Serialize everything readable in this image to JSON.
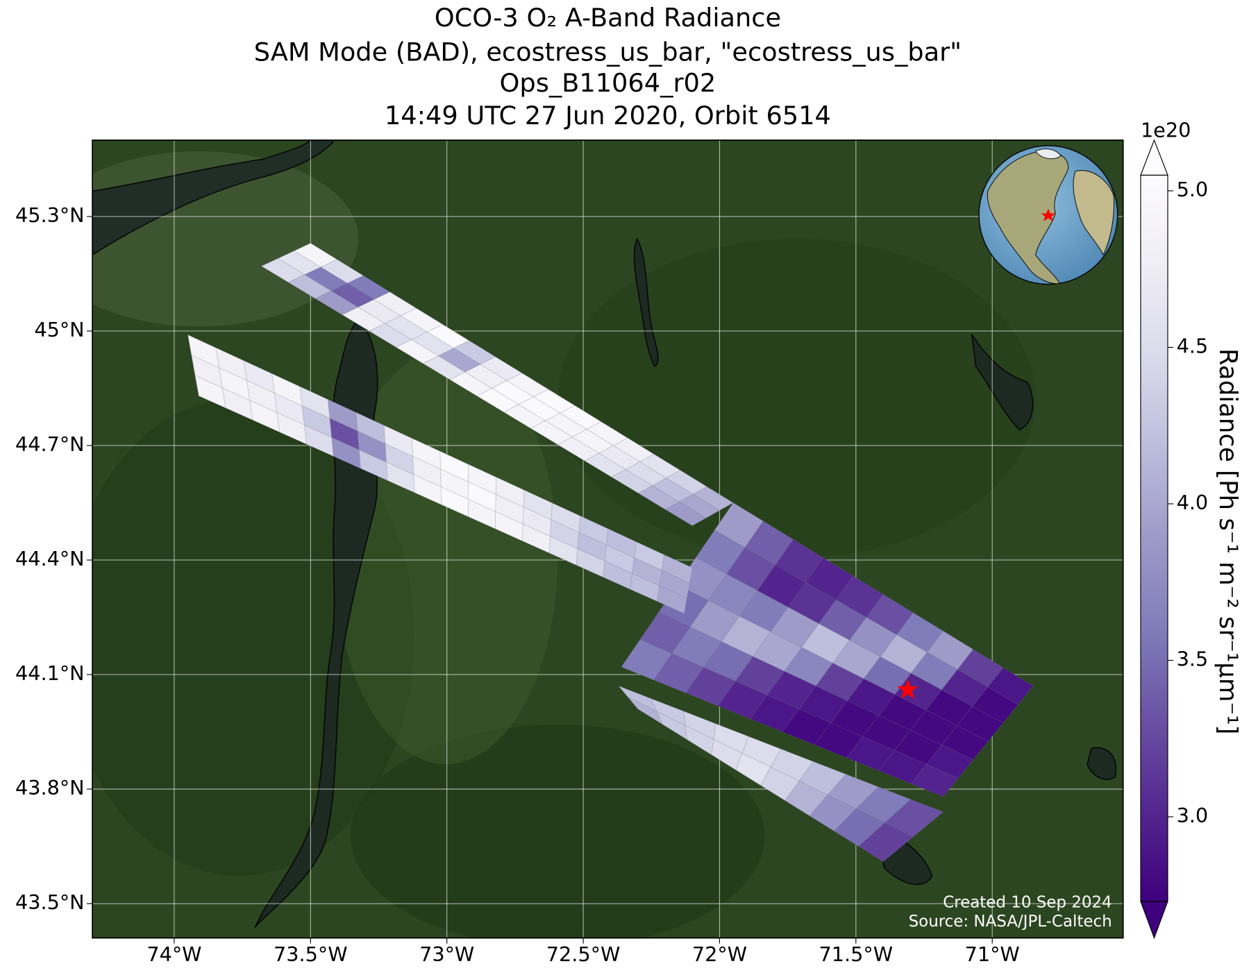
{
  "chart_data": {
    "type": "swath-map",
    "title": [
      "OCO-3 O₂ A-Band Radiance",
      "SAM Mode (BAD), ecostress_us_bar, \"ecostress_us_bar\"",
      "Ops_B11064_r02",
      "14:49 UTC 27 Jun 2020, Orbit 6514"
    ],
    "xlim": [
      -74.3,
      -70.52
    ],
    "ylim": [
      43.41,
      45.5
    ],
    "xticks": [
      {
        "value": -74,
        "label": "74°W"
      },
      {
        "value": -73.5,
        "label": "73.5°W"
      },
      {
        "value": -73,
        "label": "73°W"
      },
      {
        "value": -72.5,
        "label": "72.5°W"
      },
      {
        "value": -72,
        "label": "72°W"
      },
      {
        "value": -71.5,
        "label": "71.5°W"
      },
      {
        "value": -71,
        "label": "71°W"
      }
    ],
    "yticks": [
      {
        "value": 43.5,
        "label": "43.5°N"
      },
      {
        "value": 43.8,
        "label": "43.8°N"
      },
      {
        "value": 44.1,
        "label": "44.1°N"
      },
      {
        "value": 44.4,
        "label": "44.4°N"
      },
      {
        "value": 44.7,
        "label": "44.7°N"
      },
      {
        "value": 45,
        "label": "45°N"
      },
      {
        "value": 45.3,
        "label": "45.3°N"
      }
    ],
    "grid": true,
    "colorbar": {
      "label": "Radiance [Ph s⁻¹ m⁻² sr⁻¹μm⁻¹]",
      "offset_label": "1e20",
      "clim": [
        2.73,
        5.05
      ],
      "ticks": [
        {
          "value": 3,
          "label": "3.0"
        },
        {
          "value": 3.5,
          "label": "3.5"
        },
        {
          "value": 4,
          "label": "4.0"
        },
        {
          "value": 4.5,
          "label": "4.5"
        },
        {
          "value": 5,
          "label": "5.0"
        }
      ],
      "colormap": [
        "#3f007d",
        "#54278f",
        "#6a51a3",
        "#807dba",
        "#9e9ac8",
        "#bcbddc",
        "#dadaeb",
        "#efedf5",
        "#fcfbfd"
      ]
    },
    "target": {
      "lon": -71.31,
      "lat": 44.06,
      "color": "#ff0000"
    },
    "swaths": [
      {
        "corners": [
          [
            -73.5,
            45.23
          ],
          [
            -71.95,
            44.55
          ],
          [
            -72.1,
            44.49
          ],
          [
            -73.68,
            45.17
          ]
        ],
        "values": [
          [
            4.9,
            4.5,
            3.6,
            4.8,
            4.9,
            5.0,
            4.3,
            4.7,
            4.9,
            5.0,
            5.0,
            4.9,
            4.8,
            4.6,
            4.4,
            4.1
          ],
          [
            4.6,
            3.6,
            3.4,
            4.7,
            4.6,
            4.6,
            4.0,
            4.8,
            5.0,
            5.0,
            4.9,
            4.9,
            4.7,
            4.5,
            4.2,
            4.0
          ],
          [
            4.5,
            4.2,
            3.9,
            4.8,
            4.5,
            4.9,
            4.6,
            4.9,
            5.0,
            4.9,
            4.9,
            4.8,
            4.6,
            4.4,
            4.1,
            3.9
          ]
        ]
      },
      {
        "corners": [
          [
            -71.95,
            44.55
          ],
          [
            -70.85,
            44.07
          ],
          [
            -71.18,
            43.78
          ],
          [
            -72.36,
            44.12
          ]
        ],
        "values": [
          [
            3.9,
            3.4,
            3.1,
            3.0,
            3.1,
            3.3,
            3.6,
            3.9,
            3.2,
            2.9
          ],
          [
            3.6,
            3.3,
            3.0,
            3.1,
            3.4,
            3.8,
            4.1,
            3.6,
            3.0,
            2.8
          ],
          [
            3.8,
            3.7,
            3.6,
            3.9,
            4.2,
            4.0,
            3.5,
            3.0,
            2.8,
            2.8
          ],
          [
            3.5,
            3.9,
            4.1,
            4.0,
            3.7,
            3.2,
            2.9,
            2.8,
            2.8,
            2.8
          ],
          [
            3.4,
            3.6,
            3.5,
            3.2,
            3.0,
            2.9,
            2.8,
            2.8,
            2.8,
            2.9
          ],
          [
            3.6,
            3.4,
            3.2,
            3.0,
            2.9,
            2.8,
            2.8,
            2.9,
            2.9,
            3.0
          ]
        ]
      },
      {
        "corners": [
          [
            -73.95,
            44.99
          ],
          [
            -72.1,
            44.38
          ],
          [
            -72.13,
            44.26
          ],
          [
            -73.91,
            44.83
          ]
        ],
        "values": [
          [
            4.9,
            4.8,
            4.7,
            4.9,
            4.6,
            3.9,
            4.2,
            4.7,
            4.9,
            5.0,
            4.9,
            4.8,
            4.6,
            4.5,
            4.3,
            4.2,
            4.3,
            4.1
          ],
          [
            4.8,
            4.9,
            4.8,
            4.7,
            4.3,
            3.3,
            3.8,
            4.4,
            4.8,
            4.9,
            5.0,
            4.8,
            4.7,
            4.4,
            4.2,
            4.3,
            4.1,
            4.0
          ],
          [
            4.9,
            4.8,
            4.9,
            4.8,
            4.5,
            3.8,
            4.3,
            4.6,
            4.9,
            5.0,
            4.9,
            4.9,
            4.8,
            4.6,
            4.4,
            4.2,
            4.2,
            4.0
          ]
        ]
      },
      {
        "corners": [
          [
            -72.37,
            44.07
          ],
          [
            -71.18,
            43.74
          ],
          [
            -71.4,
            43.61
          ],
          [
            -72.3,
            44.01
          ]
        ],
        "values": [
          [
            4.2,
            4.3,
            4.4,
            4.5,
            4.5,
            4.4,
            4.2,
            3.9,
            3.6,
            3.3
          ],
          [
            4.1,
            4.3,
            4.4,
            4.5,
            4.6,
            4.4,
            4.1,
            3.8,
            3.5,
            3.2
          ]
        ]
      }
    ],
    "credits": [
      "Created 10 Sep 2024",
      "Source: NASA/JPL-Caltech"
    ]
  }
}
